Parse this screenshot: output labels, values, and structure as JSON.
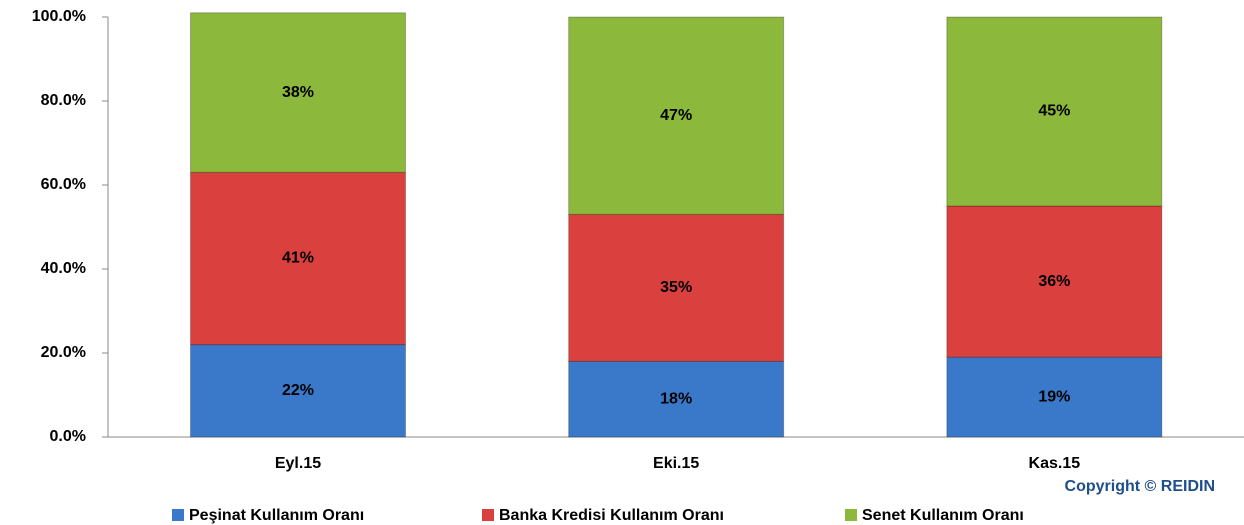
{
  "chart_data": {
    "type": "stacked_bar",
    "categories": [
      "Eyl.15",
      "Eki.15",
      "Kas.15"
    ],
    "series": [
      {
        "name": "Peşinat Kullanım Oranı",
        "color": "#3a78c9",
        "values": [
          22,
          18,
          19
        ],
        "value_labels": [
          "22%",
          "18%",
          "19%"
        ]
      },
      {
        "name": "Banka Kredisi Kullanım Oranı",
        "color": "#d9403e",
        "values": [
          41,
          35,
          36
        ],
        "value_labels": [
          "41%",
          "35%",
          "36%"
        ]
      },
      {
        "name": "Senet Kullanım Oranı",
        "color": "#8cb83c",
        "values": [
          38,
          47,
          45
        ],
        "value_labels": [
          "38%",
          "47%",
          "45%"
        ]
      }
    ],
    "ylim": [
      0,
      100
    ],
    "yticks": [
      {
        "value": 0,
        "label": "0.0%"
      },
      {
        "value": 20,
        "label": "20.0%"
      },
      {
        "value": 40,
        "label": "40.0%"
      },
      {
        "value": 60,
        "label": "60.0%"
      },
      {
        "value": 80,
        "label": "80.0%"
      },
      {
        "value": 100,
        "label": "100.0%"
      }
    ],
    "grid": false,
    "legend": "bottom",
    "annotation": "Copyright © REIDIN"
  }
}
